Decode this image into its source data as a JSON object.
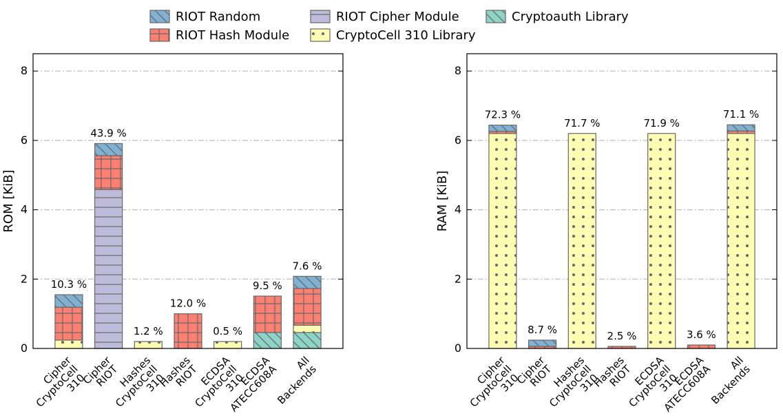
{
  "chart_data": [
    {
      "type": "bar",
      "stacked": true,
      "ylabel": "ROM [KiB]",
      "categories": [
        [
          "Cipher",
          "CryptoCell",
          "310"
        ],
        [
          "Cipher",
          "RIOT"
        ],
        [
          "Hashes",
          "CryptoCell",
          "310"
        ],
        [
          "Hashes",
          "RIOT"
        ],
        [
          "ECDSA",
          "CryptoCell",
          "310"
        ],
        [
          "ECDSA",
          "ATECC608A"
        ],
        [
          "All",
          "Backends"
        ]
      ],
      "series": [
        {
          "name": "Cryptoauth Library",
          "color": "#8dd3c7",
          "hatch": "\\",
          "values": [
            null,
            null,
            null,
            null,
            null,
            0.46,
            0.46
          ]
        },
        {
          "name": "CryptoCell 310 Library",
          "color": "#ffffb3",
          "hatch": ".",
          "values": [
            0.24,
            null,
            0.2,
            null,
            0.2,
            null,
            0.21
          ]
        },
        {
          "name": "RIOT Cipher Module",
          "color": "#bebada",
          "hatch": "-",
          "values": [
            null,
            4.58,
            null,
            null,
            null,
            null,
            null
          ]
        },
        {
          "name": "RIOT Hash Module",
          "color": "#fb8072",
          "hatch": "+",
          "values": [
            0.95,
            0.98,
            null,
            1.0,
            null,
            1.05,
            1.06
          ]
        },
        {
          "name": "RIOT Random",
          "color": "#80b1d3",
          "hatch": "\\",
          "values": [
            0.36,
            0.35,
            null,
            null,
            null,
            null,
            0.35
          ]
        }
      ],
      "annotations": [
        "10.3 %",
        "43.9 %",
        "1.2 %",
        "12.0 %",
        "0.5 %",
        "9.5 %",
        "7.6 %"
      ],
      "ylim": [
        0,
        8.5
      ],
      "yticks": [
        0,
        2,
        4,
        6,
        8
      ],
      "grid": true
    },
    {
      "type": "bar",
      "stacked": true,
      "ylabel": "RAM [KiB]",
      "categories": [
        [
          "Cipher",
          "CryptoCell",
          "310"
        ],
        [
          "Cipher",
          "RIOT"
        ],
        [
          "Hashes",
          "CryptoCell",
          "310"
        ],
        [
          "Hashes",
          "RIOT"
        ],
        [
          "ECDSA",
          "CryptoCell",
          "310"
        ],
        [
          "ECDSA",
          "ATECC608A"
        ],
        [
          "All",
          "Backends"
        ]
      ],
      "series": [
        {
          "name": "Cryptoauth Library",
          "color": "#8dd3c7",
          "hatch": "\\",
          "values": [
            null,
            null,
            null,
            null,
            null,
            null,
            null
          ]
        },
        {
          "name": "CryptoCell 310 Library",
          "color": "#ffffb3",
          "hatch": ".",
          "values": [
            6.2,
            null,
            6.2,
            null,
            6.2,
            null,
            6.2
          ]
        },
        {
          "name": "RIOT Cipher Module",
          "color": "#bebada",
          "hatch": "-",
          "values": [
            null,
            null,
            null,
            null,
            null,
            null,
            null
          ]
        },
        {
          "name": "RIOT Hash Module",
          "color": "#fb8072",
          "hatch": "+",
          "values": [
            0.06,
            0.06,
            null,
            0.06,
            null,
            0.1,
            0.07
          ]
        },
        {
          "name": "RIOT Random",
          "color": "#80b1d3",
          "hatch": "\\",
          "values": [
            0.18,
            0.18,
            null,
            null,
            null,
            null,
            0.18
          ]
        }
      ],
      "annotations": [
        "72.3 %",
        "8.7 %",
        "71.7 %",
        "2.5 %",
        "71.9 %",
        "3.6 %",
        "71.1 %"
      ],
      "ylim": [
        0,
        8.5
      ],
      "yticks": [
        0,
        2,
        4,
        6,
        8
      ],
      "grid": true
    }
  ]
}
